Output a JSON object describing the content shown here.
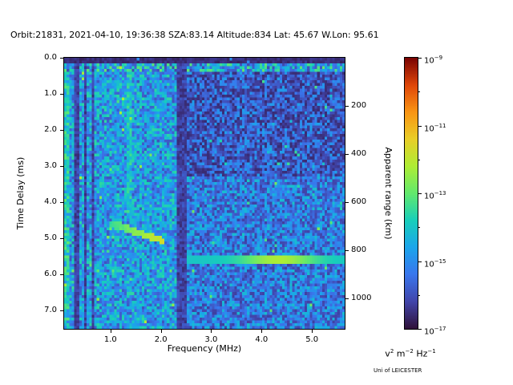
{
  "title": "Orbit:21831, 2021-04-10, 19:36:38 SZA:83.14 Altitude:834 Lat: 45.67 W.Lon: 95.61",
  "footer": "Uni of LEICESTER",
  "chart_data": {
    "type": "heatmap",
    "description": "Radar sounder ionogram spectrogram: spectral power vs frequency and time delay",
    "xlabel": "Frequency (MHz)",
    "ylabel_left": "Time Delay (ms)",
    "ylabel_right": "Apparent range (km)",
    "x_range_mhz": [
      0.08,
      5.65
    ],
    "y_range_ms": [
      0,
      7.52
    ],
    "x_ticks": [
      1.0,
      2.0,
      3.0,
      4.0,
      5.0
    ],
    "x_tick_labels": [
      "1.0",
      "2.0",
      "3.0",
      "4.0",
      "5.0"
    ],
    "y_ticks_ms": [
      0,
      1,
      2,
      3,
      4,
      5,
      6,
      7
    ],
    "y_tick_labels": [
      "0.0",
      "1.0",
      "2.0",
      "3.0",
      "4.0",
      "5.0",
      "6.0",
      "7.0"
    ],
    "right_ticks_km": [
      200,
      400,
      600,
      800,
      1000
    ],
    "km_per_ms": 150,
    "colorbar": {
      "scale": "log",
      "min_exp": -17,
      "max_exp": -9,
      "tick_exps": [
        -9,
        -11,
        -13,
        -15,
        -17
      ],
      "unit_parts": [
        [
          "v",
          "2"
        ],
        [
          "m",
          "−2"
        ],
        [
          "Hz",
          "−1"
        ]
      ],
      "colormap": "turbo"
    },
    "features": {
      "ionosphere_trace": {
        "points_mhz_ms": [
          [
            1.0,
            4.62
          ],
          [
            1.2,
            4.68
          ],
          [
            1.45,
            4.8
          ],
          [
            1.7,
            4.92
          ],
          [
            1.9,
            5.0
          ],
          [
            2.05,
            5.08
          ]
        ],
        "relative_power_t": [
          0.42,
          0.66
        ]
      },
      "ground_echo": {
        "y_ms": 5.6,
        "x_start_mhz": 2.5,
        "x_end_mhz": 5.65,
        "peak_mhz": 4.35,
        "relative_power_t": [
          0.38,
          0.6
        ]
      },
      "dark_columns_mhz": [
        [
          0.3,
          0.38
        ],
        [
          0.47,
          0.53
        ],
        [
          0.62,
          0.67
        ],
        [
          2.33,
          2.52
        ]
      ],
      "bright_columns_mhz": [
        [
          0.1,
          0.18
        ],
        [
          1.32,
          1.4
        ]
      ],
      "dark_top_band_ms": [
        0,
        0.14
      ],
      "speckle_band_ms": [
        0.14,
        0.4
      ]
    },
    "noise": {
      "seed": 42,
      "nx": 112,
      "ny": 96
    }
  }
}
